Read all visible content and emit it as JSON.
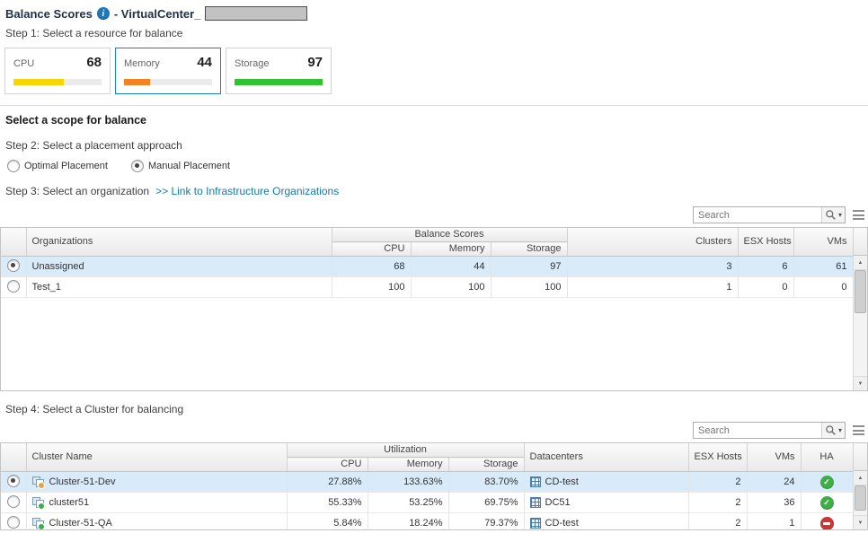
{
  "header": {
    "title": "Balance Scores",
    "suffix": "- VirtualCenter_",
    "step1": "Step 1: Select a resource for balance"
  },
  "resources": [
    {
      "label": "CPU",
      "value": "68",
      "color": "#f6d500",
      "bar_pct": 57,
      "selected": false
    },
    {
      "label": "Memory",
      "value": "44",
      "color": "#f58220",
      "bar_pct": 30,
      "selected": true
    },
    {
      "label": "Storage",
      "value": "97",
      "color": "#2fc42f",
      "bar_pct": 100,
      "selected": false
    }
  ],
  "scope": {
    "title": "Select a scope for balance",
    "step2": "Step 2: Select a placement approach",
    "options": [
      {
        "label": "Optimal Placement",
        "selected": false
      },
      {
        "label": "Manual Placement",
        "selected": true
      }
    ],
    "step3": "Step 3: Select an organization",
    "step3_link": ">> Link to Infrastructure Organizations",
    "step4": "Step 4: Select a Cluster for balancing"
  },
  "org_table": {
    "search_placeholder": "Search",
    "group_header": "Balance Scores",
    "columns": {
      "organizations": "Organizations",
      "cpu": "CPU",
      "memory": "Memory",
      "storage": "Storage",
      "clusters": "Clusters",
      "esx_hosts": "ESX Hosts",
      "vms": "VMs"
    },
    "rows": [
      {
        "name": "Unassigned",
        "cpu": "68",
        "memory": "44",
        "storage": "97",
        "clusters": "3",
        "esx_hosts": "6",
        "vms": "61",
        "selected": true
      },
      {
        "name": "Test_1",
        "cpu": "100",
        "memory": "100",
        "storage": "100",
        "clusters": "1",
        "esx_hosts": "0",
        "vms": "0",
        "selected": false
      }
    ]
  },
  "cluster_table": {
    "search_placeholder": "Search",
    "group_header": "Utilization",
    "columns": {
      "cluster_name": "Cluster Name",
      "cpu": "CPU",
      "memory": "Memory",
      "storage": "Storage",
      "datacenters": "Datacenters",
      "esx_hosts": "ESX Hosts",
      "vms": "VMs",
      "ha": "HA"
    },
    "rows": [
      {
        "name": "Cluster-51-Dev",
        "icon_color": "#e8a33d",
        "cpu": "27.88%",
        "memory": "133.63%",
        "storage": "83.70%",
        "datacenter": "CD-test",
        "esx_hosts": "2",
        "vms": "24",
        "ha": "ok",
        "selected": true
      },
      {
        "name": "cluster51",
        "icon_color": "#3fae49",
        "cpu": "55.33%",
        "memory": "53.25%",
        "storage": "69.75%",
        "datacenter": "DC51",
        "esx_hosts": "2",
        "vms": "36",
        "ha": "ok",
        "selected": false
      },
      {
        "name": "Cluster-51-QA",
        "icon_color": "#3fae49",
        "cpu": "5.84%",
        "memory": "18.24%",
        "storage": "79.37%",
        "datacenter": "CD-test",
        "esx_hosts": "2",
        "vms": "1",
        "ha": "error",
        "selected": false
      }
    ]
  }
}
